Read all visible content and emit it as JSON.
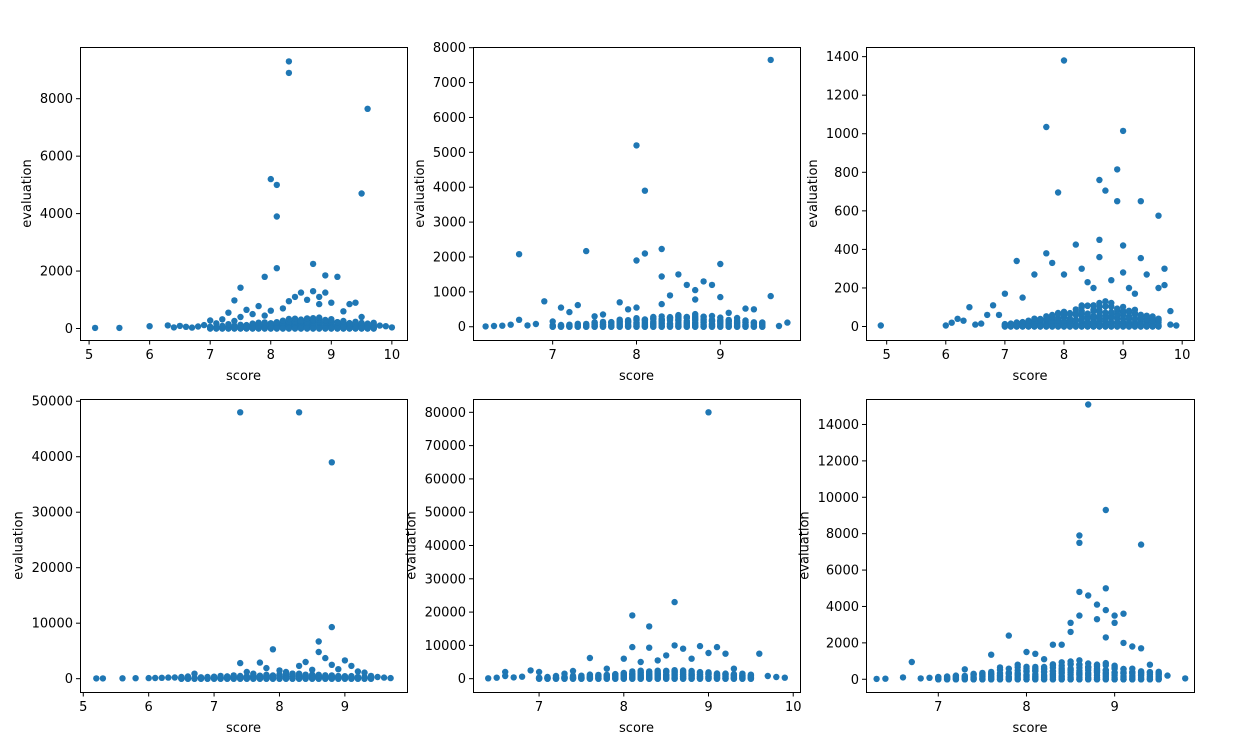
{
  "chart_data": [
    {
      "type": "scatter",
      "xlabel": "score",
      "ylabel": "evaluation",
      "xlim": [
        4.85,
        10.25
      ],
      "ylim": [
        -400,
        9800
      ],
      "xticks": [
        5,
        6,
        7,
        8,
        9,
        10
      ],
      "yticks": [
        0,
        2000,
        4000,
        6000,
        8000
      ],
      "color": "#1f77b4",
      "points": [
        [
          5.1,
          20
        ],
        [
          5.5,
          20
        ],
        [
          6.0,
          80
        ],
        [
          6.3,
          110
        ],
        [
          6.4,
          40
        ],
        [
          6.5,
          90
        ],
        [
          6.6,
          60
        ],
        [
          6.7,
          30
        ],
        [
          6.8,
          70
        ],
        [
          6.9,
          120
        ],
        [
          7.0,
          280
        ],
        [
          7.0,
          60
        ],
        [
          7.1,
          180
        ],
        [
          7.2,
          320
        ],
        [
          7.2,
          90
        ],
        [
          7.3,
          550
        ],
        [
          7.3,
          150
        ],
        [
          7.4,
          980
        ],
        [
          7.4,
          260
        ],
        [
          7.5,
          1420
        ],
        [
          7.5,
          400
        ],
        [
          7.6,
          650
        ],
        [
          7.7,
          500
        ],
        [
          7.8,
          780
        ],
        [
          7.9,
          1800
        ],
        [
          7.9,
          450
        ],
        [
          8.0,
          5200
        ],
        [
          8.0,
          620
        ],
        [
          8.1,
          5000
        ],
        [
          8.1,
          3900
        ],
        [
          8.1,
          2100
        ],
        [
          8.2,
          700
        ],
        [
          8.3,
          9300
        ],
        [
          8.3,
          8900
        ],
        [
          8.3,
          950
        ],
        [
          8.4,
          1100
        ],
        [
          8.5,
          1250
        ],
        [
          8.6,
          1000
        ],
        [
          8.7,
          2250
        ],
        [
          8.7,
          1300
        ],
        [
          8.8,
          1100
        ],
        [
          8.8,
          850
        ],
        [
          8.9,
          1850
        ],
        [
          8.9,
          1250
        ],
        [
          9.0,
          900
        ],
        [
          9.1,
          1800
        ],
        [
          9.2,
          600
        ],
        [
          9.3,
          850
        ],
        [
          9.4,
          900
        ],
        [
          9.5,
          4700
        ],
        [
          9.5,
          400
        ],
        [
          9.6,
          7650
        ],
        [
          9.7,
          200
        ],
        [
          9.8,
          100
        ],
        [
          9.9,
          80
        ],
        [
          10.0,
          40
        ]
      ],
      "dense_x_range": [
        7.0,
        9.7
      ],
      "dense_y_max": 480,
      "dense_x_step": 0.1
    },
    {
      "type": "scatter",
      "xlabel": "score",
      "ylabel": "evaluation",
      "xlim": [
        6.05,
        9.95
      ],
      "ylim": [
        -380,
        8020
      ],
      "xticks": [
        7,
        8,
        9
      ],
      "yticks": [
        0,
        1000,
        2000,
        3000,
        4000,
        5000,
        6000,
        7000,
        8000
      ],
      "color": "#1f77b4",
      "points": [
        [
          6.2,
          10
        ],
        [
          6.3,
          20
        ],
        [
          6.4,
          30
        ],
        [
          6.5,
          60
        ],
        [
          6.6,
          2080
        ],
        [
          6.6,
          200
        ],
        [
          6.7,
          40
        ],
        [
          6.8,
          80
        ],
        [
          6.9,
          730
        ],
        [
          7.0,
          150
        ],
        [
          7.1,
          550
        ],
        [
          7.2,
          420
        ],
        [
          7.3,
          620
        ],
        [
          7.4,
          2170
        ],
        [
          7.5,
          300
        ],
        [
          7.6,
          350
        ],
        [
          7.8,
          700
        ],
        [
          7.9,
          500
        ],
        [
          8.0,
          5200
        ],
        [
          8.0,
          1900
        ],
        [
          8.0,
          550
        ],
        [
          8.1,
          3900
        ],
        [
          8.1,
          2100
        ],
        [
          8.3,
          2230
        ],
        [
          8.3,
          1440
        ],
        [
          8.3,
          650
        ],
        [
          8.4,
          900
        ],
        [
          8.5,
          1500
        ],
        [
          8.6,
          1200
        ],
        [
          8.7,
          1050
        ],
        [
          8.7,
          780
        ],
        [
          8.8,
          1300
        ],
        [
          8.9,
          1200
        ],
        [
          9.0,
          1800
        ],
        [
          9.0,
          850
        ],
        [
          9.1,
          400
        ],
        [
          9.2,
          250
        ],
        [
          9.3,
          520
        ],
        [
          9.4,
          500
        ],
        [
          9.5,
          80
        ],
        [
          9.6,
          880
        ],
        [
          9.6,
          7650
        ],
        [
          9.7,
          20
        ],
        [
          9.8,
          120
        ]
      ],
      "dense_x_range": [
        7.0,
        9.5
      ],
      "dense_y_max": 450,
      "dense_x_step": 0.1
    },
    {
      "type": "scatter",
      "xlabel": "score",
      "ylabel": "evaluation",
      "xlim": [
        4.65,
        10.2
      ],
      "ylim": [
        -70,
        1450
      ],
      "xticks": [
        5,
        6,
        7,
        8,
        9,
        10
      ],
      "yticks": [
        0,
        200,
        400,
        600,
        800,
        1000,
        1200,
        1400
      ],
      "color": "#1f77b4",
      "points": [
        [
          4.9,
          5
        ],
        [
          6.0,
          5
        ],
        [
          6.1,
          20
        ],
        [
          6.2,
          40
        ],
        [
          6.3,
          30
        ],
        [
          6.4,
          100
        ],
        [
          6.5,
          10
        ],
        [
          6.6,
          15
        ],
        [
          6.7,
          60
        ],
        [
          6.8,
          110
        ],
        [
          6.9,
          60
        ],
        [
          7.0,
          170
        ],
        [
          7.2,
          340
        ],
        [
          7.3,
          150
        ],
        [
          7.5,
          270
        ],
        [
          7.7,
          1035
        ],
        [
          7.7,
          380
        ],
        [
          7.8,
          330
        ],
        [
          7.9,
          695
        ],
        [
          8.0,
          1380
        ],
        [
          8.0,
          270
        ],
        [
          8.2,
          425
        ],
        [
          8.3,
          300
        ],
        [
          8.4,
          230
        ],
        [
          8.5,
          200
        ],
        [
          8.6,
          450
        ],
        [
          8.6,
          360
        ],
        [
          8.6,
          760
        ],
        [
          8.7,
          705
        ],
        [
          8.8,
          240
        ],
        [
          8.9,
          650
        ],
        [
          8.9,
          815
        ],
        [
          9.0,
          1015
        ],
        [
          9.0,
          420
        ],
        [
          9.0,
          280
        ],
        [
          9.1,
          200
        ],
        [
          9.2,
          170
        ],
        [
          9.3,
          650
        ],
        [
          9.3,
          355
        ],
        [
          9.4,
          270
        ],
        [
          9.6,
          575
        ],
        [
          9.6,
          200
        ],
        [
          9.7,
          300
        ],
        [
          9.7,
          215
        ],
        [
          9.8,
          80
        ],
        [
          9.8,
          10
        ],
        [
          9.9,
          5
        ]
      ],
      "dense_x_range": [
        7.0,
        9.6
      ],
      "dense_y_max": 160,
      "dense_x_step": 0.1
    },
    {
      "type": "scatter",
      "xlabel": "score",
      "ylabel": "evaluation",
      "xlim": [
        4.95,
        9.95
      ],
      "ylim": [
        -2400,
        50400
      ],
      "xticks": [
        5,
        6,
        7,
        8,
        9
      ],
      "yticks": [
        0,
        10000,
        20000,
        30000,
        40000,
        50000
      ],
      "color": "#1f77b4",
      "points": [
        [
          5.2,
          50
        ],
        [
          5.3,
          50
        ],
        [
          5.6,
          60
        ],
        [
          5.8,
          80
        ],
        [
          6.0,
          100
        ],
        [
          6.1,
          120
        ],
        [
          6.2,
          150
        ],
        [
          6.3,
          200
        ],
        [
          6.4,
          220
        ],
        [
          6.5,
          300
        ],
        [
          6.6,
          400
        ],
        [
          6.7,
          900
        ],
        [
          6.8,
          250
        ],
        [
          6.9,
          300
        ],
        [
          7.0,
          350
        ],
        [
          7.1,
          500
        ],
        [
          7.2,
          400
        ],
        [
          7.3,
          600
        ],
        [
          7.4,
          48000
        ],
        [
          7.4,
          2800
        ],
        [
          7.5,
          1200
        ],
        [
          7.6,
          900
        ],
        [
          7.7,
          2900
        ],
        [
          7.8,
          1900
        ],
        [
          7.9,
          5300
        ],
        [
          8.0,
          1500
        ],
        [
          8.1,
          1200
        ],
        [
          8.2,
          900
        ],
        [
          8.3,
          48000
        ],
        [
          8.3,
          2300
        ],
        [
          8.4,
          3000
        ],
        [
          8.5,
          1600
        ],
        [
          8.6,
          6700
        ],
        [
          8.6,
          4800
        ],
        [
          8.7,
          3700
        ],
        [
          8.8,
          39000
        ],
        [
          8.8,
          9300
        ],
        [
          8.8,
          2500
        ],
        [
          8.9,
          1700
        ],
        [
          9.0,
          3300
        ],
        [
          9.1,
          2300
        ],
        [
          9.2,
          1300
        ],
        [
          9.3,
          1100
        ],
        [
          9.4,
          500
        ],
        [
          9.5,
          300
        ],
        [
          9.6,
          200
        ],
        [
          9.7,
          100
        ]
      ],
      "dense_x_range": [
        6.5,
        9.4
      ],
      "dense_y_max": 1100,
      "dense_x_step": 0.1
    },
    {
      "type": "scatter",
      "xlabel": "score",
      "ylabel": "evaluation",
      "xlim": [
        6.22,
        10.08
      ],
      "ylim": [
        -4000,
        84000
      ],
      "xticks": [
        7,
        8,
        9,
        10
      ],
      "yticks": [
        0,
        10000,
        20000,
        30000,
        40000,
        50000,
        60000,
        70000,
        80000
      ],
      "color": "#1f77b4",
      "points": [
        [
          6.4,
          100
        ],
        [
          6.5,
          300
        ],
        [
          6.6,
          800
        ],
        [
          6.6,
          2000
        ],
        [
          6.7,
          400
        ],
        [
          6.8,
          600
        ],
        [
          6.9,
          2500
        ],
        [
          7.0,
          2000
        ],
        [
          7.1,
          500
        ],
        [
          7.2,
          800
        ],
        [
          7.3,
          1500
        ],
        [
          7.4,
          2300
        ],
        [
          7.6,
          6200
        ],
        [
          7.8,
          3000
        ],
        [
          8.0,
          6000
        ],
        [
          8.1,
          19000
        ],
        [
          8.1,
          9500
        ],
        [
          8.2,
          5000
        ],
        [
          8.3,
          15700
        ],
        [
          8.3,
          9300
        ],
        [
          8.4,
          5500
        ],
        [
          8.5,
          7000
        ],
        [
          8.6,
          23000
        ],
        [
          8.6,
          10000
        ],
        [
          8.7,
          9000
        ],
        [
          8.8,
          6000
        ],
        [
          8.9,
          9800
        ],
        [
          9.0,
          80000
        ],
        [
          9.0,
          7700
        ],
        [
          9.1,
          9500
        ],
        [
          9.2,
          7500
        ],
        [
          9.3,
          3000
        ],
        [
          9.4,
          1500
        ],
        [
          9.5,
          1200
        ],
        [
          9.6,
          7500
        ],
        [
          9.7,
          800
        ],
        [
          9.8,
          500
        ],
        [
          9.9,
          300
        ]
      ],
      "dense_x_range": [
        7.0,
        9.5
      ],
      "dense_y_max": 3500,
      "dense_x_step": 0.1
    },
    {
      "type": "scatter",
      "xlabel": "score",
      "ylabel": "evaluation",
      "xlim": [
        6.18,
        9.9
      ],
      "ylim": [
        -700,
        15400
      ],
      "xticks": [
        7,
        8,
        9
      ],
      "yticks": [
        0,
        2000,
        4000,
        6000,
        8000,
        10000,
        12000,
        14000
      ],
      "color": "#1f77b4",
      "points": [
        [
          6.3,
          20
        ],
        [
          6.4,
          30
        ],
        [
          6.6,
          100
        ],
        [
          6.7,
          950
        ],
        [
          6.8,
          50
        ],
        [
          6.9,
          80
        ],
        [
          7.0,
          100
        ],
        [
          7.1,
          150
        ],
        [
          7.2,
          200
        ],
        [
          7.3,
          550
        ],
        [
          7.4,
          300
        ],
        [
          7.5,
          350
        ],
        [
          7.6,
          1350
        ],
        [
          7.7,
          650
        ],
        [
          7.8,
          2400
        ],
        [
          7.9,
          800
        ],
        [
          8.0,
          1500
        ],
        [
          8.1,
          1400
        ],
        [
          8.2,
          1100
        ],
        [
          8.3,
          1900
        ],
        [
          8.4,
          1900
        ],
        [
          8.5,
          2600
        ],
        [
          8.5,
          3100
        ],
        [
          8.6,
          7900
        ],
        [
          8.6,
          7500
        ],
        [
          8.6,
          3500
        ],
        [
          8.6,
          4800
        ],
        [
          8.7,
          15100
        ],
        [
          8.7,
          4600
        ],
        [
          8.8,
          4100
        ],
        [
          8.8,
          3300
        ],
        [
          8.9,
          9300
        ],
        [
          8.9,
          5000
        ],
        [
          8.9,
          3800
        ],
        [
          8.9,
          2300
        ],
        [
          9.0,
          3500
        ],
        [
          9.0,
          3100
        ],
        [
          9.1,
          3600
        ],
        [
          9.1,
          2000
        ],
        [
          9.2,
          1800
        ],
        [
          9.3,
          7400
        ],
        [
          9.3,
          1700
        ],
        [
          9.4,
          800
        ],
        [
          9.5,
          300
        ],
        [
          9.6,
          200
        ],
        [
          9.8,
          50
        ]
      ],
      "dense_x_range": [
        7.0,
        9.5
      ],
      "dense_y_max": 1300,
      "dense_x_step": 0.1
    }
  ]
}
